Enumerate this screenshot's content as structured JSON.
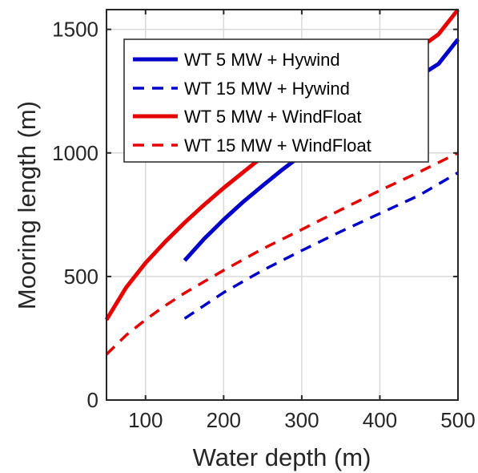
{
  "chart_data": {
    "type": "line",
    "title": "",
    "xlabel": "Water depth (m)",
    "ylabel": "Mooring length (m)",
    "xlim": [
      50,
      500
    ],
    "ylim": [
      0,
      1580
    ],
    "xticks": [
      100,
      200,
      300,
      400,
      500
    ],
    "yticks": [
      0,
      500,
      1000,
      1500
    ],
    "grid": true,
    "legend_position": "top",
    "series": [
      {
        "name": "WT 5 MW + Hywind",
        "color": "#0000c8",
        "style": "solid",
        "x": [
          150,
          175,
          200,
          225,
          250,
          275,
          300,
          325,
          350,
          375,
          400,
          425,
          450,
          475,
          500
        ],
        "y": [
          565,
          652,
          730,
          802,
          868,
          932,
          992,
          1050,
          1105,
          1158,
          1210,
          1260,
          1310,
          1360,
          1460
        ]
      },
      {
        "name": "WT 15 MW + Hywind",
        "color": "#0000c8",
        "style": "dashed",
        "x": [
          150,
          200,
          250,
          300,
          350,
          400,
          450,
          500
        ],
        "y": [
          330,
          435,
          525,
          605,
          682,
          755,
          828,
          920
        ]
      },
      {
        "name": "WT 5 MW + WindFloat",
        "color": "#e60000",
        "style": "solid",
        "x": [
          50,
          75,
          100,
          125,
          150,
          175,
          200,
          225,
          250,
          275,
          300,
          325,
          350,
          375,
          400,
          425,
          450,
          475,
          500
        ],
        "y": [
          325,
          455,
          555,
          640,
          718,
          790,
          858,
          922,
          985,
          1045,
          1102,
          1158,
          1212,
          1265,
          1318,
          1370,
          1423,
          1480,
          1580
        ]
      },
      {
        "name": "WT 15 MW + WindFloat",
        "color": "#e60000",
        "style": "dashed",
        "x": [
          50,
          75,
          100,
          125,
          150,
          200,
          250,
          300,
          350,
          400,
          450,
          500
        ],
        "y": [
          185,
          262,
          325,
          382,
          433,
          525,
          612,
          690,
          770,
          848,
          922,
          1000
        ]
      }
    ]
  }
}
